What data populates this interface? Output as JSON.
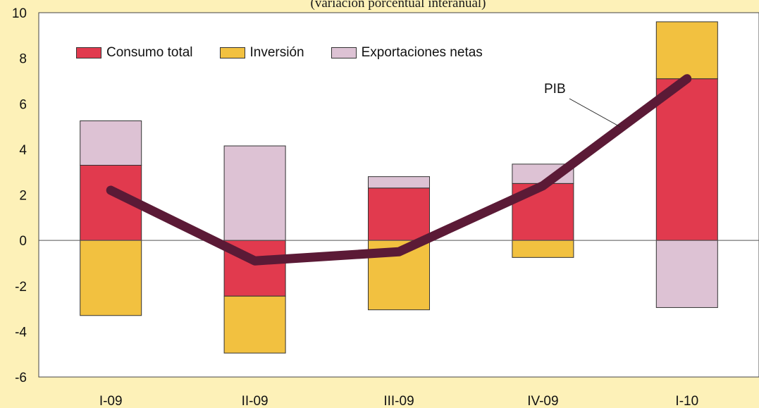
{
  "subtitle": "(variación porcentual interanual)",
  "chart_data": {
    "type": "bar",
    "categories": [
      "I-09",
      "II-09",
      "III-09",
      "IV-09",
      "I-10"
    ],
    "ylim": [
      -6,
      10
    ],
    "yticks": [
      10,
      8,
      6,
      4,
      2,
      0,
      -2,
      -4,
      -6
    ],
    "series": [
      {
        "name": "Consumo total",
        "color": "#e13a4e",
        "values": [
          3.3,
          -2.45,
          2.3,
          2.5,
          7.1
        ]
      },
      {
        "name": "Inversión",
        "color": "#f2c140",
        "values": [
          -3.3,
          -2.5,
          -3.05,
          -0.75,
          2.5
        ]
      },
      {
        "name": "Exportaciones netas",
        "color": "#ddc2d4",
        "values": [
          1.95,
          4.15,
          0.5,
          0.85,
          -2.95
        ]
      }
    ],
    "line": {
      "name": "PIB",
      "color": "#5b1a36",
      "values": [
        2.2,
        -0.9,
        -0.5,
        2.4,
        7.1
      ]
    },
    "legend_placement": "top-left",
    "grid": false
  }
}
